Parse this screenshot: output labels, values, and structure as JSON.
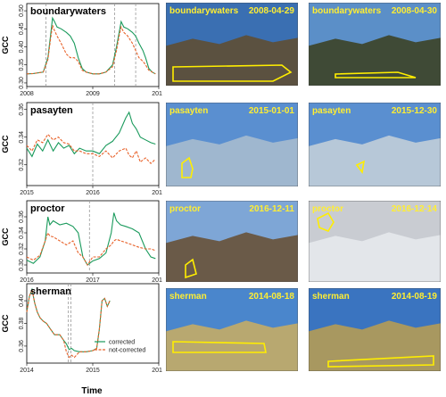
{
  "colors": {
    "corrected": "#1a9a5c",
    "not_corrected": "#e8622a",
    "roi": "#ffee00",
    "vline": "#999999"
  },
  "axes": {
    "ylabel": "GCC",
    "xlabel": "Time"
  },
  "legend": {
    "corrected": "corrected",
    "not_corrected": "not-corrected"
  },
  "chart_data": [
    {
      "type": "line",
      "title": "boundarywaters",
      "xlim": [
        2008,
        2010
      ],
      "xticks": [
        "2008",
        "2009",
        "2010"
      ],
      "ylim": [
        0.29,
        0.52
      ],
      "yticks": [
        0.3,
        0.35,
        0.4,
        0.45,
        0.5
      ],
      "ytick_labels": [
        "0.30",
        "0.35",
        "0.40",
        "0.45",
        "0.50"
      ],
      "vlines": [
        2008.29,
        2009.33,
        2009.65
      ],
      "series": [
        {
          "name": "corrected",
          "x": [
            2008.0,
            2008.1,
            2008.25,
            2008.32,
            2008.36,
            2008.39,
            2008.42,
            2008.46,
            2008.52,
            2008.6,
            2008.66,
            2008.72,
            2008.78,
            2008.84,
            2008.9,
            2009.0,
            2009.1,
            2009.2,
            2009.3,
            2009.36,
            2009.4,
            2009.43,
            2009.47,
            2009.53,
            2009.6,
            2009.65,
            2009.7,
            2009.76,
            2009.8,
            2009.85,
            2009.9,
            2009.95
          ],
          "y": [
            0.325,
            0.326,
            0.33,
            0.37,
            0.43,
            0.48,
            0.47,
            0.455,
            0.45,
            0.44,
            0.43,
            0.41,
            0.37,
            0.34,
            0.33,
            0.325,
            0.325,
            0.33,
            0.35,
            0.4,
            0.44,
            0.47,
            0.455,
            0.45,
            0.44,
            0.43,
            0.41,
            0.39,
            0.37,
            0.34,
            0.33,
            0.325
          ]
        },
        {
          "name": "not-corrected",
          "x": [
            2008.0,
            2008.1,
            2008.25,
            2008.32,
            2008.36,
            2008.39,
            2008.42,
            2008.46,
            2008.52,
            2008.6,
            2008.66,
            2008.72,
            2008.78,
            2008.84,
            2008.9,
            2009.0,
            2009.1,
            2009.2,
            2009.3,
            2009.36,
            2009.4,
            2009.43,
            2009.47,
            2009.53,
            2009.6,
            2009.65,
            2009.7,
            2009.76,
            2009.8,
            2009.85,
            2009.9,
            2009.95
          ],
          "y": [
            0.325,
            0.326,
            0.33,
            0.365,
            0.42,
            0.46,
            0.445,
            0.43,
            0.41,
            0.38,
            0.37,
            0.37,
            0.36,
            0.335,
            0.33,
            0.325,
            0.325,
            0.33,
            0.345,
            0.39,
            0.43,
            0.455,
            0.44,
            0.43,
            0.41,
            0.39,
            0.37,
            0.36,
            0.35,
            0.335,
            0.33,
            0.325
          ]
        }
      ]
    },
    {
      "type": "line",
      "title": "pasayten",
      "xlim": [
        2015,
        2017
      ],
      "xticks": [
        "2015",
        "2016",
        "2017"
      ],
      "ylim": [
        0.305,
        0.365
      ],
      "yticks": [
        0.32,
        0.34,
        0.36
      ],
      "ytick_labels": [
        "0.32",
        "0.34",
        "0.36"
      ],
      "vlines": [
        2016.0
      ],
      "series": [
        {
          "name": "corrected",
          "x": [
            2015.0,
            2015.08,
            2015.16,
            2015.24,
            2015.32,
            2015.4,
            2015.48,
            2015.56,
            2015.64,
            2015.72,
            2015.8,
            2015.9,
            2016.0,
            2016.1,
            2016.2,
            2016.3,
            2016.4,
            2016.5,
            2016.55,
            2016.6,
            2016.66,
            2016.72,
            2016.8,
            2016.88,
            2016.95
          ],
          "y": [
            0.332,
            0.326,
            0.335,
            0.33,
            0.338,
            0.33,
            0.336,
            0.332,
            0.334,
            0.328,
            0.332,
            0.33,
            0.33,
            0.328,
            0.334,
            0.337,
            0.343,
            0.354,
            0.358,
            0.35,
            0.346,
            0.34,
            0.338,
            0.336,
            0.335
          ]
        },
        {
          "name": "not-corrected",
          "x": [
            2015.0,
            2015.08,
            2015.16,
            2015.24,
            2015.32,
            2015.4,
            2015.48,
            2015.56,
            2015.64,
            2015.72,
            2015.8,
            2015.9,
            2016.0,
            2016.1,
            2016.2,
            2016.3,
            2016.4,
            2016.5,
            2016.55,
            2016.6,
            2016.66,
            2016.72,
            2016.8,
            2016.88,
            2016.95
          ],
          "y": [
            0.334,
            0.33,
            0.338,
            0.336,
            0.342,
            0.338,
            0.34,
            0.336,
            0.335,
            0.33,
            0.33,
            0.328,
            0.328,
            0.326,
            0.33,
            0.325,
            0.33,
            0.332,
            0.327,
            0.325,
            0.33,
            0.322,
            0.325,
            0.321,
            0.324
          ]
        }
      ]
    },
    {
      "type": "line",
      "title": "proctor",
      "xlim": [
        2016,
        2018
      ],
      "xticks": [
        "2016",
        "2017",
        "2018"
      ],
      "ylim": [
        0.29,
        0.38
      ],
      "yticks": [
        0.3,
        0.32,
        0.34,
        0.36
      ],
      "ytick_labels": [
        "0.30",
        "0.32",
        "0.34",
        "0.36"
      ],
      "vlines": [
        2016.95
      ],
      "series": [
        {
          "name": "corrected",
          "x": [
            2016.0,
            2016.1,
            2016.2,
            2016.28,
            2016.32,
            2016.35,
            2016.4,
            2016.5,
            2016.6,
            2016.7,
            2016.78,
            2016.85,
            2016.92,
            2017.0,
            2017.1,
            2017.2,
            2017.28,
            2017.32,
            2017.36,
            2017.42,
            2017.5,
            2017.6,
            2017.7,
            2017.8,
            2017.88,
            2017.95
          ],
          "y": [
            0.306,
            0.302,
            0.31,
            0.33,
            0.36,
            0.35,
            0.355,
            0.35,
            0.352,
            0.348,
            0.34,
            0.31,
            0.3,
            0.305,
            0.308,
            0.315,
            0.34,
            0.365,
            0.355,
            0.35,
            0.348,
            0.345,
            0.34,
            0.32,
            0.31,
            0.308
          ]
        },
        {
          "name": "not-corrected",
          "x": [
            2016.0,
            2016.1,
            2016.2,
            2016.28,
            2016.32,
            2016.35,
            2016.4,
            2016.5,
            2016.6,
            2016.7,
            2016.78,
            2016.85,
            2016.92,
            2017.0,
            2017.1,
            2017.2,
            2017.28,
            2017.32,
            2017.36,
            2017.42,
            2017.5,
            2017.6,
            2017.7,
            2017.8,
            2017.88,
            2017.95
          ],
          "y": [
            0.31,
            0.306,
            0.312,
            0.33,
            0.34,
            0.336,
            0.335,
            0.33,
            0.325,
            0.33,
            0.315,
            0.31,
            0.3,
            0.31,
            0.31,
            0.32,
            0.325,
            0.33,
            0.332,
            0.33,
            0.328,
            0.325,
            0.322,
            0.32,
            0.32,
            0.318
          ]
        }
      ]
    },
    {
      "type": "line",
      "title": "sherman",
      "xlim": [
        2014,
        2016
      ],
      "xticks": [
        "2014",
        "2015",
        "2016"
      ],
      "ylim": [
        0.345,
        0.415
      ],
      "yticks": [
        0.36,
        0.38,
        0.4
      ],
      "ytick_labels": [
        "0.36",
        "0.38",
        "0.40"
      ],
      "vlines": [
        2014.63,
        2014.67
      ],
      "series": [
        {
          "name": "corrected",
          "x": [
            2014.0,
            2014.04,
            2014.08,
            2014.12,
            2014.16,
            2014.2,
            2014.25,
            2014.3,
            2014.36,
            2014.42,
            2014.5,
            2014.56,
            2014.6,
            2014.64,
            2014.68,
            2014.72,
            2014.8,
            2014.9,
            2015.0,
            2015.06,
            2015.1,
            2015.14,
            2015.18,
            2015.22,
            2015.26
          ],
          "y": [
            0.39,
            0.404,
            0.41,
            0.398,
            0.39,
            0.385,
            0.382,
            0.38,
            0.375,
            0.37,
            0.37,
            0.365,
            0.362,
            0.357,
            0.358,
            0.356,
            0.355,
            0.355,
            0.356,
            0.358,
            0.375,
            0.4,
            0.402,
            0.395,
            0.4
          ]
        },
        {
          "name": "not-corrected",
          "x": [
            2014.0,
            2014.04,
            2014.08,
            2014.12,
            2014.16,
            2014.2,
            2014.25,
            2014.3,
            2014.36,
            2014.42,
            2014.5,
            2014.56,
            2014.6,
            2014.64,
            2014.68,
            2014.72,
            2014.8,
            2014.9,
            2015.0,
            2015.06,
            2015.1,
            2015.14,
            2015.18,
            2015.22,
            2015.26
          ],
          "y": [
            0.39,
            0.404,
            0.41,
            0.398,
            0.39,
            0.385,
            0.382,
            0.38,
            0.375,
            0.37,
            0.37,
            0.365,
            0.355,
            0.35,
            0.352,
            0.35,
            0.355,
            0.355,
            0.356,
            0.358,
            0.375,
            0.4,
            0.402,
            0.395,
            0.4
          ]
        }
      ]
    }
  ],
  "photos": [
    {
      "site": "boundarywaters",
      "date": "2008-04-29",
      "sky": "#3a6fb2",
      "ground": "#5b5140"
    },
    {
      "site": "boundarywaters",
      "date": "2008-04-30",
      "sky": "#5b8fc8",
      "ground": "#3f4a36"
    },
    {
      "site": "pasayten",
      "date": "2015-01-01",
      "sky": "#5a8fd0",
      "ground": "#9fb7cf"
    },
    {
      "site": "pasayten",
      "date": "2015-12-30",
      "sky": "#5a8fd0",
      "ground": "#b7c8d8"
    },
    {
      "site": "proctor",
      "date": "2016-12-11",
      "sky": "#7ea6d6",
      "ground": "#6a5a48"
    },
    {
      "site": "proctor",
      "date": "2016-12-14",
      "sky": "#c9ccd2",
      "ground": "#e3e6ea"
    },
    {
      "site": "sherman",
      "date": "2014-08-18",
      "sky": "#4a86cc",
      "ground": "#b8a870"
    },
    {
      "site": "sherman",
      "date": "2014-08-19",
      "sky": "#3a74c0",
      "ground": "#a89860"
    }
  ]
}
